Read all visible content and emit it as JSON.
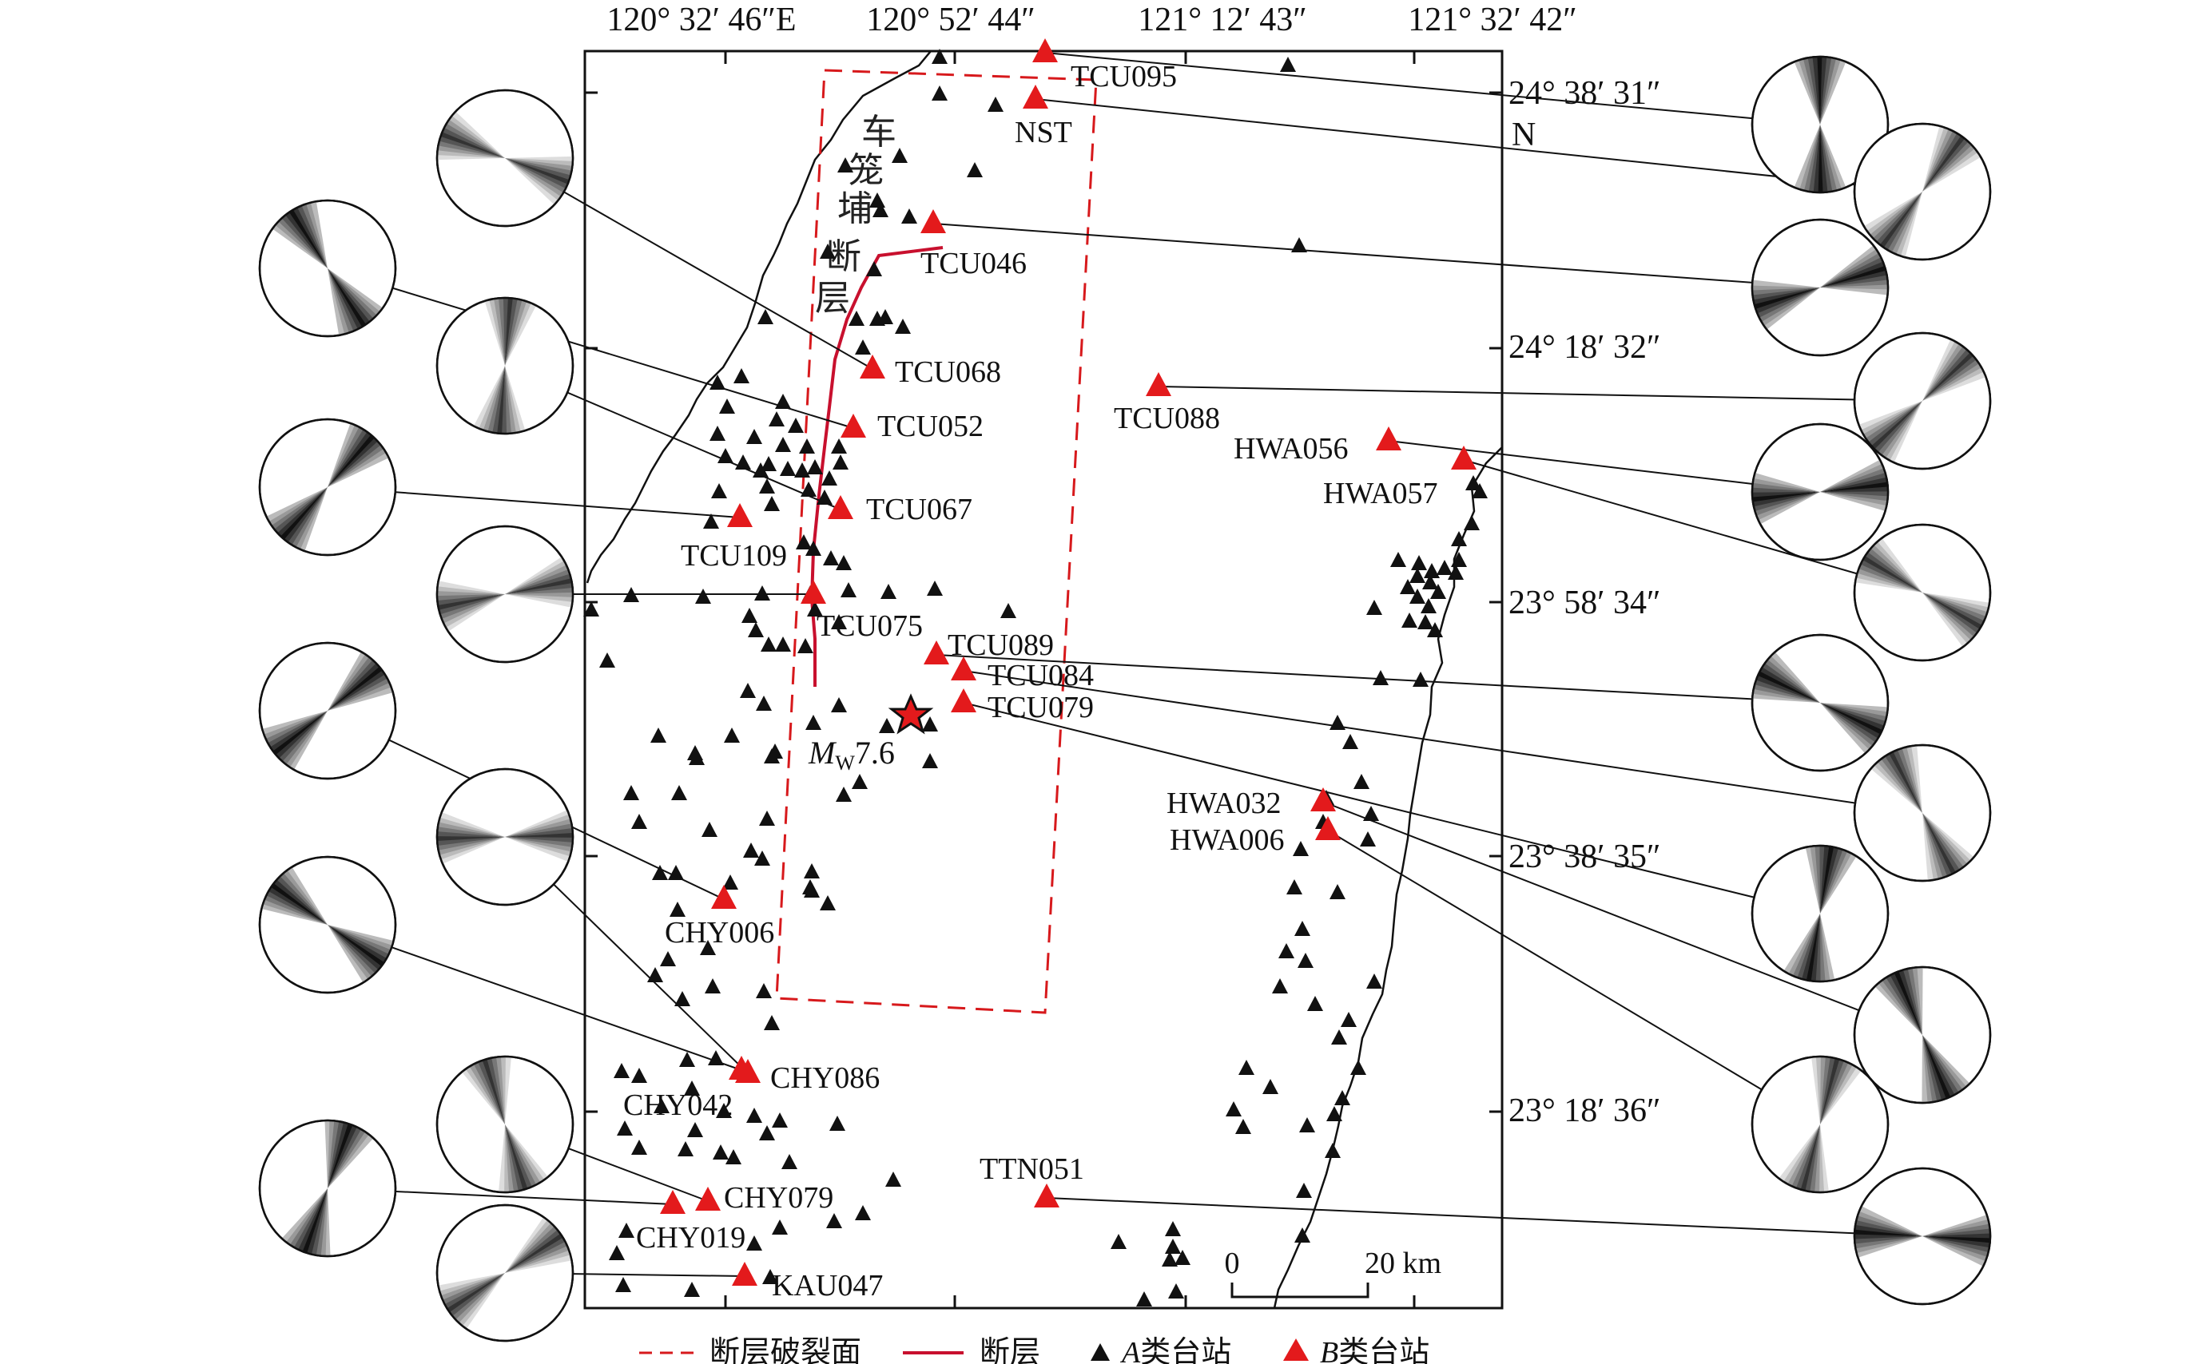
{
  "map": {
    "top_ticks": [
      "120° 32′ 46″E",
      "120° 52′ 44″",
      "121° 12′ 43″",
      "121° 32′ 42″"
    ],
    "right_ticks": [
      "24° 38′ 31″",
      "N",
      "24° 18′ 32″",
      "23° 58′ 34″",
      "23° 38′ 35″",
      "23° 18′ 36″"
    ],
    "fault_name_chars": [
      "车",
      "笼",
      "埔",
      "断",
      "层"
    ],
    "epicenter_label": {
      "m": "M",
      "sub": "W",
      "val": "7.6"
    },
    "scalebar": {
      "zero": "0",
      "dist": "20 km"
    }
  },
  "stations_b": [
    {
      "id": "TCU095"
    },
    {
      "id": "NST"
    },
    {
      "id": "TCU046"
    },
    {
      "id": "TCU068"
    },
    {
      "id": "TCU052"
    },
    {
      "id": "TCU067"
    },
    {
      "id": "TCU109"
    },
    {
      "id": "TCU075"
    },
    {
      "id": "TCU089"
    },
    {
      "id": "TCU084"
    },
    {
      "id": "TCU079"
    },
    {
      "id": "TCU088"
    },
    {
      "id": "HWA056"
    },
    {
      "id": "HWA057"
    },
    {
      "id": "HWA032"
    },
    {
      "id": "HWA006"
    },
    {
      "id": "CHY006"
    },
    {
      "id": "CHY086"
    },
    {
      "id": "CHY042"
    },
    {
      "id": "CHY079"
    },
    {
      "id": "CHY019"
    },
    {
      "id": "KAU047"
    },
    {
      "id": "TTN051"
    }
  ],
  "legend": {
    "rupture_plane": "断层破裂面",
    "fault": "断层",
    "class_a": {
      "italic": "A",
      "rest": "类台站"
    },
    "class_b": {
      "italic": "B",
      "rest": "类台站"
    }
  },
  "colors": {
    "class_b": "#e31a1c",
    "class_a": "#111111",
    "fault": "#c8102e"
  }
}
